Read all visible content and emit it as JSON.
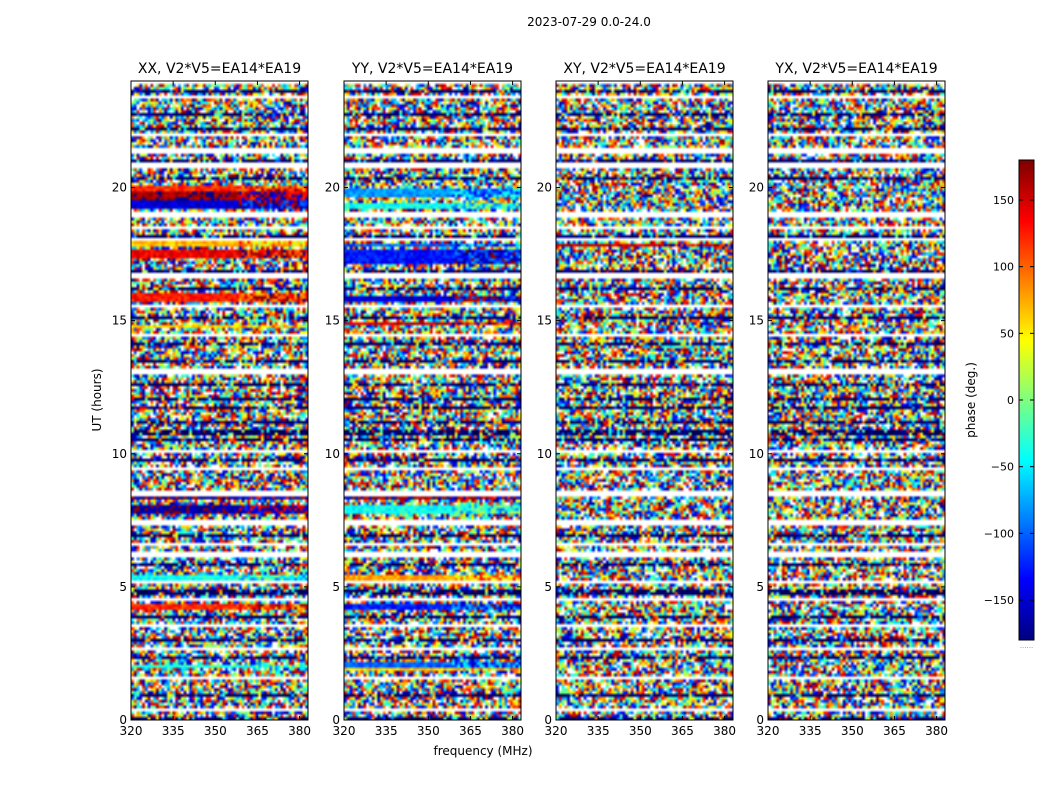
{
  "figure": {
    "title": "2023-07-29 0.0-24.0",
    "xlabel": "frequency (MHz)",
    "ylabel": "UT (hours)"
  },
  "colormap": "jet",
  "chart_data": {
    "type": "heatmap",
    "xlim": [
      320,
      383
    ],
    "ylim": [
      0,
      24
    ],
    "xticks": [
      320,
      335,
      350,
      365,
      380
    ],
    "yticks": [
      0,
      5,
      10,
      15,
      20
    ],
    "colorbar": {
      "label": "phase (deg.)",
      "range": [
        -180,
        180
      ],
      "ticks": [
        -150,
        -100,
        -50,
        0,
        50,
        100,
        150
      ],
      "tick_labels": [
        "−150",
        "−100",
        "−50",
        "0",
        "50",
        "100",
        "150"
      ],
      "below_label": "......"
    },
    "panels": [
      {
        "title": "XX, V2*V5=EA14*EA19",
        "coherent_bands": [
          {
            "t0": 19.25,
            "t1": 19.55,
            "phase": -150
          },
          {
            "t0": 19.55,
            "t1": 19.85,
            "phase": 170
          },
          {
            "t0": 19.85,
            "t1": 20.05,
            "phase": 120
          },
          {
            "t0": 17.3,
            "t1": 17.65,
            "phase": 140
          },
          {
            "t0": 17.8,
            "t1": 17.95,
            "phase": 70
          },
          {
            "t0": 15.7,
            "t1": 16.0,
            "phase": 130
          },
          {
            "t0": 14.7,
            "t1": 14.85,
            "phase": 60
          },
          {
            "t0": 7.75,
            "t1": 8.1,
            "phase": -170
          },
          {
            "t0": 8.25,
            "t1": 8.45,
            "phase": -175
          },
          {
            "t0": 5.2,
            "t1": 5.5,
            "phase": -40
          },
          {
            "t0": 4.2,
            "t1": 4.35,
            "phase": 120
          },
          {
            "t0": 1.95,
            "t1": 2.1,
            "phase": -30
          }
        ]
      },
      {
        "title": "YY, V2*V5=EA14*EA19",
        "coherent_bands": [
          {
            "t0": 19.6,
            "t1": 19.95,
            "phase": -80
          },
          {
            "t0": 19.2,
            "t1": 19.45,
            "phase": -40
          },
          {
            "t0": 17.1,
            "t1": 17.7,
            "phase": -130
          },
          {
            "t0": 17.75,
            "t1": 17.9,
            "phase": -100
          },
          {
            "t0": 15.7,
            "t1": 15.95,
            "phase": -150
          },
          {
            "t0": 14.8,
            "t1": 14.95,
            "phase": 150
          },
          {
            "t0": 7.7,
            "t1": 8.1,
            "phase": -40
          },
          {
            "t0": 8.3,
            "t1": 8.45,
            "phase": 175
          },
          {
            "t0": 5.2,
            "t1": 5.45,
            "phase": 80
          },
          {
            "t0": 4.2,
            "t1": 4.35,
            "phase": -130
          },
          {
            "t0": 2.0,
            "t1": 2.15,
            "phase": -100
          },
          {
            "t0": 1.8,
            "t1": 1.95,
            "phase": 60
          }
        ]
      },
      {
        "title": "XY, V2*V5=EA14*EA19",
        "coherent_bands": [
          {
            "t0": 17.8,
            "t1": 17.9,
            "phase": 150
          }
        ]
      },
      {
        "title": "YX, V2*V5=EA14*EA19",
        "coherent_bands": [
          {
            "t0": 8.35,
            "t1": 8.42,
            "phase": -150
          }
        ]
      }
    ],
    "empty_bands": [
      [
        23.85,
        24.0
      ],
      [
        23.3,
        23.45
      ],
      [
        21.9,
        22.0
      ],
      [
        21.25,
        21.45
      ],
      [
        20.75,
        20.9
      ],
      [
        18.9,
        19.1
      ],
      [
        18.4,
        18.55
      ],
      [
        17.95,
        18.1
      ],
      [
        16.55,
        16.75
      ],
      [
        15.5,
        15.65
      ],
      [
        14.35,
        14.5
      ],
      [
        13.0,
        13.15
      ],
      [
        10.05,
        10.2
      ],
      [
        9.4,
        9.5
      ],
      [
        8.45,
        8.6
      ],
      [
        7.35,
        7.5
      ],
      [
        6.55,
        6.7
      ],
      [
        6.1,
        6.3
      ],
      [
        5.1,
        5.2
      ],
      [
        4.5,
        4.6
      ],
      [
        3.5,
        3.65
      ],
      [
        2.6,
        2.75
      ],
      [
        1.5,
        1.65
      ],
      [
        1.15,
        1.25
      ],
      [
        0.3,
        0.4
      ]
    ],
    "dark_bands": [
      23.6,
      22.7,
      22.2,
      21.0,
      20.3,
      18.2,
      16.9,
      16.2,
      15.1,
      14.1,
      13.5,
      12.6,
      12.1,
      11.7,
      11.2,
      10.8,
      10.5,
      9.8,
      6.9,
      5.8,
      4.8,
      3.9,
      3.0,
      2.3,
      0.9,
      0.1
    ]
  }
}
